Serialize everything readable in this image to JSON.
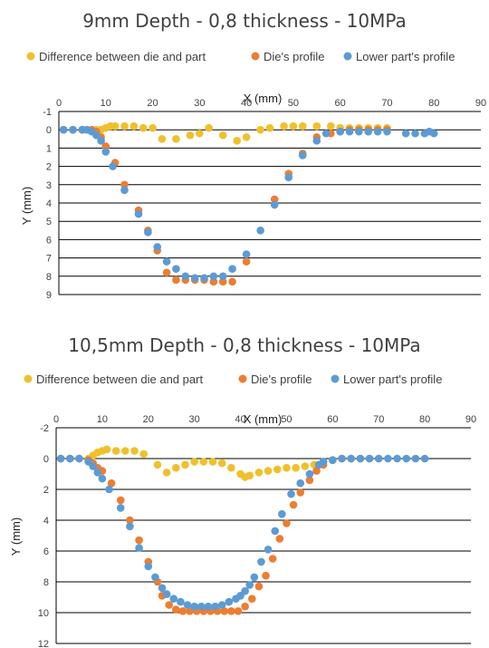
{
  "colors": {
    "diff": "#f0c02c",
    "die": "#ed7d31",
    "part": "#5b9bd5",
    "grid": "#000000",
    "text": "#404040"
  },
  "chart_data": [
    {
      "type": "scatter",
      "title": "9mm Depth - 0,8 thickness - 10MPa",
      "xlabel": "X (mm)",
      "ylabel": "Y (mm)",
      "xlim": [
        0,
        90
      ],
      "ylim": [
        -1,
        9
      ],
      "y_inverted": true,
      "x_ticks": [
        0,
        10,
        20,
        30,
        40,
        50,
        60,
        70,
        80,
        90
      ],
      "y_ticks": [
        -1,
        0,
        1,
        2,
        3,
        4,
        5,
        6,
        7,
        8,
        9
      ],
      "legend_position": "top",
      "series": [
        {
          "name": "Difference between die and part",
          "color_key": "diff",
          "points": [
            [
              1,
              0
            ],
            [
              3,
              0
            ],
            [
              5,
              0
            ],
            [
              6,
              0
            ],
            [
              7,
              0
            ],
            [
              8,
              0
            ],
            [
              9,
              0
            ],
            [
              10,
              -0.1
            ],
            [
              11,
              -0.2
            ],
            [
              12,
              -0.2
            ],
            [
              14,
              -0.2
            ],
            [
              16,
              -0.2
            ],
            [
              18,
              -0.1
            ],
            [
              20,
              -0.1
            ],
            [
              22,
              0.5
            ],
            [
              25,
              0.5
            ],
            [
              28,
              0.3
            ],
            [
              30,
              0.2
            ],
            [
              32,
              -0.1
            ],
            [
              35,
              0.3
            ],
            [
              38,
              0.6
            ],
            [
              40,
              0.4
            ],
            [
              43,
              0
            ],
            [
              45,
              -0.1
            ],
            [
              48,
              -0.2
            ],
            [
              50,
              -0.2
            ],
            [
              52,
              -0.2
            ],
            [
              55,
              -0.2
            ],
            [
              58,
              -0.2
            ],
            [
              60,
              -0.1
            ],
            [
              62,
              -0.1
            ],
            [
              64,
              -0.1
            ],
            [
              66,
              -0.1
            ],
            [
              68,
              -0.1
            ],
            [
              70,
              -0.1
            ]
          ]
        },
        {
          "name": "Die's profile",
          "color_key": "die",
          "points": [
            [
              1,
              0
            ],
            [
              3,
              0
            ],
            [
              5,
              0
            ],
            [
              7,
              0
            ],
            [
              8,
              0.1
            ],
            [
              9,
              0.4
            ],
            [
              10,
              0.9
            ],
            [
              12,
              1.8
            ],
            [
              14,
              3
            ],
            [
              17,
              4.4
            ],
            [
              19,
              5.5
            ],
            [
              21,
              6.6
            ],
            [
              23,
              7.8
            ],
            [
              25,
              8.2
            ],
            [
              27,
              8.2
            ],
            [
              29,
              8.2
            ],
            [
              31,
              8.2
            ],
            [
              33,
              8.3
            ],
            [
              35,
              8.3
            ],
            [
              37,
              8.3
            ],
            [
              40,
              7.2
            ],
            [
              46,
              3.8
            ],
            [
              49,
              2.4
            ],
            [
              52,
              1.3
            ],
            [
              55,
              0.4
            ],
            [
              58,
              0.2
            ],
            [
              60,
              0.1
            ],
            [
              62,
              0
            ],
            [
              64,
              0
            ],
            [
              66,
              0
            ],
            [
              68,
              0
            ],
            [
              70,
              0
            ]
          ]
        },
        {
          "name": "Lower part's profile",
          "color_key": "part",
          "points": [
            [
              1,
              0
            ],
            [
              3,
              0
            ],
            [
              5,
              0
            ],
            [
              6,
              0
            ],
            [
              7,
              0.1
            ],
            [
              8,
              0.3
            ],
            [
              9,
              0.6
            ],
            [
              10,
              1.2
            ],
            [
              11.5,
              2
            ],
            [
              14,
              3.3
            ],
            [
              17,
              4.6
            ],
            [
              19,
              5.6
            ],
            [
              21,
              6.4
            ],
            [
              23,
              7.2
            ],
            [
              25,
              7.6
            ],
            [
              27,
              8
            ],
            [
              29,
              8.1
            ],
            [
              31,
              8.1
            ],
            [
              33,
              8
            ],
            [
              35,
              8
            ],
            [
              37,
              7.6
            ],
            [
              40,
              6.8
            ],
            [
              43,
              5.5
            ],
            [
              46,
              4.1
            ],
            [
              49,
              2.6
            ],
            [
              52,
              1.4
            ],
            [
              55,
              0.6
            ],
            [
              57,
              0.2
            ],
            [
              60,
              0.1
            ],
            [
              62,
              0.1
            ],
            [
              64,
              0.1
            ],
            [
              66,
              0.1
            ],
            [
              68,
              0.1
            ],
            [
              70,
              0.1
            ],
            [
              74,
              0.2
            ],
            [
              76,
              0.2
            ],
            [
              78,
              0.2
            ],
            [
              79,
              0.1
            ],
            [
              80,
              0.2
            ]
          ]
        }
      ]
    },
    {
      "type": "scatter",
      "title": "10,5mm Depth - 0,8 thickness - 10MPa",
      "xlabel": "X (mm)",
      "ylabel": "Y (mm)",
      "xlim": [
        0,
        90
      ],
      "ylim": [
        -2,
        12
      ],
      "y_inverted": true,
      "x_ticks": [
        0,
        10,
        20,
        30,
        40,
        50,
        60,
        70,
        80,
        90
      ],
      "y_ticks": [
        -2,
        0,
        2,
        4,
        6,
        8,
        10,
        12
      ],
      "legend_position": "top",
      "series": [
        {
          "name": "Difference between die and part",
          "color_key": "diff",
          "points": [
            [
              1,
              0
            ],
            [
              3,
              0
            ],
            [
              5,
              0
            ],
            [
              7,
              0
            ],
            [
              8,
              -0.2
            ],
            [
              9,
              -0.4
            ],
            [
              10,
              -0.5
            ],
            [
              11,
              -0.6
            ],
            [
              13,
              -0.5
            ],
            [
              15,
              -0.5
            ],
            [
              17,
              -0.5
            ],
            [
              19,
              -0.3
            ],
            [
              22,
              0.4
            ],
            [
              24,
              0.9
            ],
            [
              26,
              0.6
            ],
            [
              28,
              0.4
            ],
            [
              30,
              0.2
            ],
            [
              32,
              0.2
            ],
            [
              34,
              0.2
            ],
            [
              36,
              0.3
            ],
            [
              38,
              0.6
            ],
            [
              40,
              1
            ],
            [
              41,
              1.2
            ],
            [
              42,
              1.1
            ],
            [
              44,
              0.9
            ],
            [
              46,
              0.8
            ],
            [
              48,
              0.7
            ],
            [
              50,
              0.6
            ],
            [
              52,
              0.6
            ],
            [
              54,
              0.5
            ],
            [
              56,
              0.4
            ],
            [
              58,
              0.2
            ],
            [
              60,
              0.1
            ],
            [
              62,
              0
            ]
          ]
        },
        {
          "name": "Die's profile",
          "color_key": "die",
          "points": [
            [
              1,
              0
            ],
            [
              3,
              0
            ],
            [
              5,
              0
            ],
            [
              7,
              0.1
            ],
            [
              8,
              0.3
            ],
            [
              9,
              0.6
            ],
            [
              10,
              0.8
            ],
            [
              12,
              1.6
            ],
            [
              14,
              2.7
            ],
            [
              16,
              4
            ],
            [
              18,
              5.3
            ],
            [
              20,
              6.7
            ],
            [
              22,
              8
            ],
            [
              23,
              8.9
            ],
            [
              24.5,
              9.5
            ],
            [
              26,
              9.8
            ],
            [
              27.5,
              9.9
            ],
            [
              29,
              9.9
            ],
            [
              30.5,
              9.9
            ],
            [
              32,
              9.9
            ],
            [
              33.5,
              9.9
            ],
            [
              35,
              9.9
            ],
            [
              36.5,
              9.9
            ],
            [
              38,
              9.9
            ],
            [
              39.5,
              9.9
            ],
            [
              41,
              9.6
            ],
            [
              42.5,
              9.1
            ],
            [
              44,
              8.3
            ],
            [
              45.5,
              7.6
            ],
            [
              47,
              6.5
            ],
            [
              48.5,
              5.2
            ],
            [
              50,
              4.2
            ],
            [
              51.5,
              3
            ],
            [
              53,
              2.2
            ],
            [
              55,
              1.4
            ],
            [
              56.5,
              0.8
            ],
            [
              58,
              0.4
            ],
            [
              60,
              0.1
            ],
            [
              62,
              0
            ],
            [
              64,
              0
            ],
            [
              66,
              0
            ],
            [
              68,
              0
            ],
            [
              70,
              0
            ]
          ]
        },
        {
          "name": "Lower part's profile",
          "color_key": "part",
          "points": [
            [
              1,
              0
            ],
            [
              3,
              0
            ],
            [
              5,
              0
            ],
            [
              7,
              0.2
            ],
            [
              8,
              0.5
            ],
            [
              9,
              0.9
            ],
            [
              10,
              1.3
            ],
            [
              11.5,
              2
            ],
            [
              14,
              3.2
            ],
            [
              16,
              4.4
            ],
            [
              18,
              5.8
            ],
            [
              20,
              7
            ],
            [
              21.5,
              7.7
            ],
            [
              23,
              8.4
            ],
            [
              24,
              8.8
            ],
            [
              25.5,
              9.1
            ],
            [
              27,
              9.3
            ],
            [
              28.5,
              9.5
            ],
            [
              30,
              9.6
            ],
            [
              31.5,
              9.6
            ],
            [
              33,
              9.6
            ],
            [
              34.5,
              9.6
            ],
            [
              36,
              9.5
            ],
            [
              37.5,
              9.3
            ],
            [
              39,
              9.1
            ],
            [
              40,
              8.9
            ],
            [
              41,
              8.6
            ],
            [
              42,
              8.2
            ],
            [
              43,
              7.7
            ],
            [
              44.5,
              6.7
            ],
            [
              46,
              5.9
            ],
            [
              47.5,
              4.7
            ],
            [
              49,
              3.6
            ],
            [
              51,
              2.3
            ],
            [
              53,
              1.6
            ],
            [
              55,
              1
            ],
            [
              57,
              0.4
            ],
            [
              58,
              0.2
            ],
            [
              60,
              0.1
            ],
            [
              62,
              0
            ],
            [
              64,
              0
            ],
            [
              66,
              0
            ],
            [
              68,
              0
            ],
            [
              70,
              0
            ],
            [
              72,
              0
            ],
            [
              74,
              0
            ],
            [
              76,
              0
            ],
            [
              78,
              0
            ],
            [
              80,
              0
            ]
          ]
        }
      ]
    }
  ]
}
